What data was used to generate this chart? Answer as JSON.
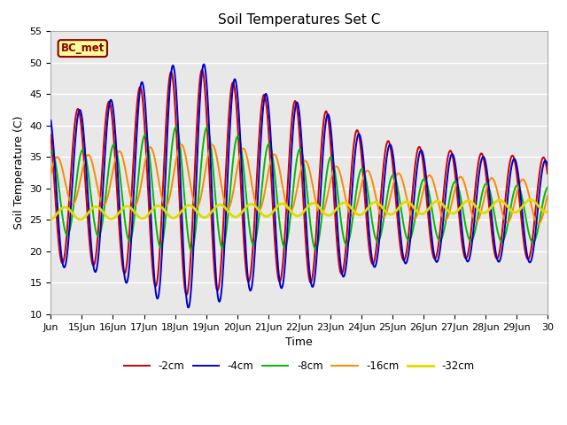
{
  "title": "Soil Temperatures Set C",
  "xlabel": "Time",
  "ylabel": "Soil Temperature (C)",
  "ylim": [
    10,
    55
  ],
  "xlim": [
    0,
    16
  ],
  "yticks": [
    10,
    15,
    20,
    25,
    30,
    35,
    40,
    45,
    50,
    55
  ],
  "xtick_labels": [
    "Jun",
    "15Jun",
    "16Jun",
    "17Jun",
    "18Jun",
    "19Jun",
    "20Jun",
    "21Jun",
    "22Jun",
    "23Jun",
    "24Jun",
    "25Jun",
    "26Jun",
    "27Jun",
    "28Jun",
    "29Jun",
    "30"
  ],
  "series": {
    "-2cm": {
      "color": "#CC0000",
      "lw": 1.4
    },
    "-4cm": {
      "color": "#0000CC",
      "lw": 1.4
    },
    "-8cm": {
      "color": "#00BB00",
      "lw": 1.4
    },
    "-16cm": {
      "color": "#FF8800",
      "lw": 1.4
    },
    "-32cm": {
      "color": "#DDDD00",
      "lw": 2.0
    }
  },
  "annotation_label": "BC_met",
  "bg_color": "#E8E8E8",
  "fig_bg": "#FFFFFF",
  "grid_color": "#FFFFFF",
  "title_fontsize": 11,
  "label_fontsize": 9,
  "tick_fontsize": 8
}
